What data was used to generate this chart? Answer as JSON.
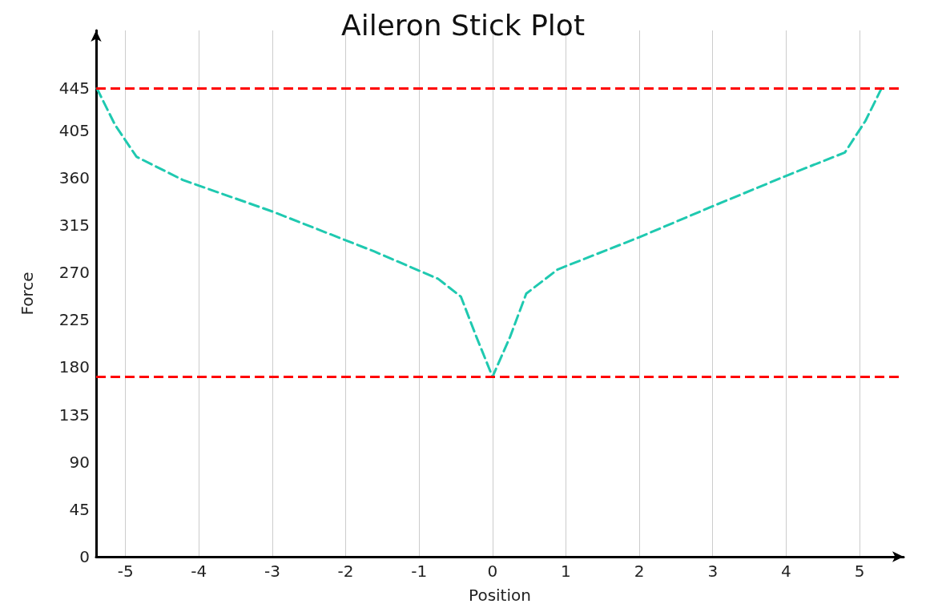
{
  "chart_data": {
    "type": "line",
    "title": "Aileron Stick Plot",
    "xlabel": "Position",
    "ylabel": "Force",
    "xlim": [
      -5.4,
      5.6
    ],
    "xticks": [
      -5,
      -4,
      -3,
      -2,
      -1,
      0,
      1,
      2,
      3,
      4,
      5
    ],
    "ylim": [
      0,
      500
    ],
    "yticks": [
      0,
      45,
      90,
      135,
      180,
      225,
      270,
      315,
      360,
      405,
      445
    ],
    "grid": "x",
    "marker": "none",
    "line_style": "dashed",
    "series": [
      {
        "color": "#1fc9b0",
        "x": [
          -5.39,
          -5.14,
          -4.85,
          -4.22,
          -3,
          -1.61,
          -0.74,
          -0.43,
          -0.22,
          0,
          0.24,
          0.46,
          0.89,
          1.98,
          3,
          4.04,
          4.8,
          5.08,
          5.3
        ],
        "values": [
          445,
          410,
          380,
          358,
          328,
          290,
          264,
          247,
          209,
          171,
          209,
          250,
          273,
          303,
          333,
          363,
          384,
          414,
          445
        ]
      }
    ],
    "ref_lines": [
      {
        "axis": "y",
        "value": 445,
        "label": null,
        "color": "#ff0000",
        "line_style": "dashed"
      },
      {
        "axis": "y",
        "value": 171,
        "label": null,
        "color": "#ff0000",
        "line_style": "dashed"
      }
    ]
  }
}
